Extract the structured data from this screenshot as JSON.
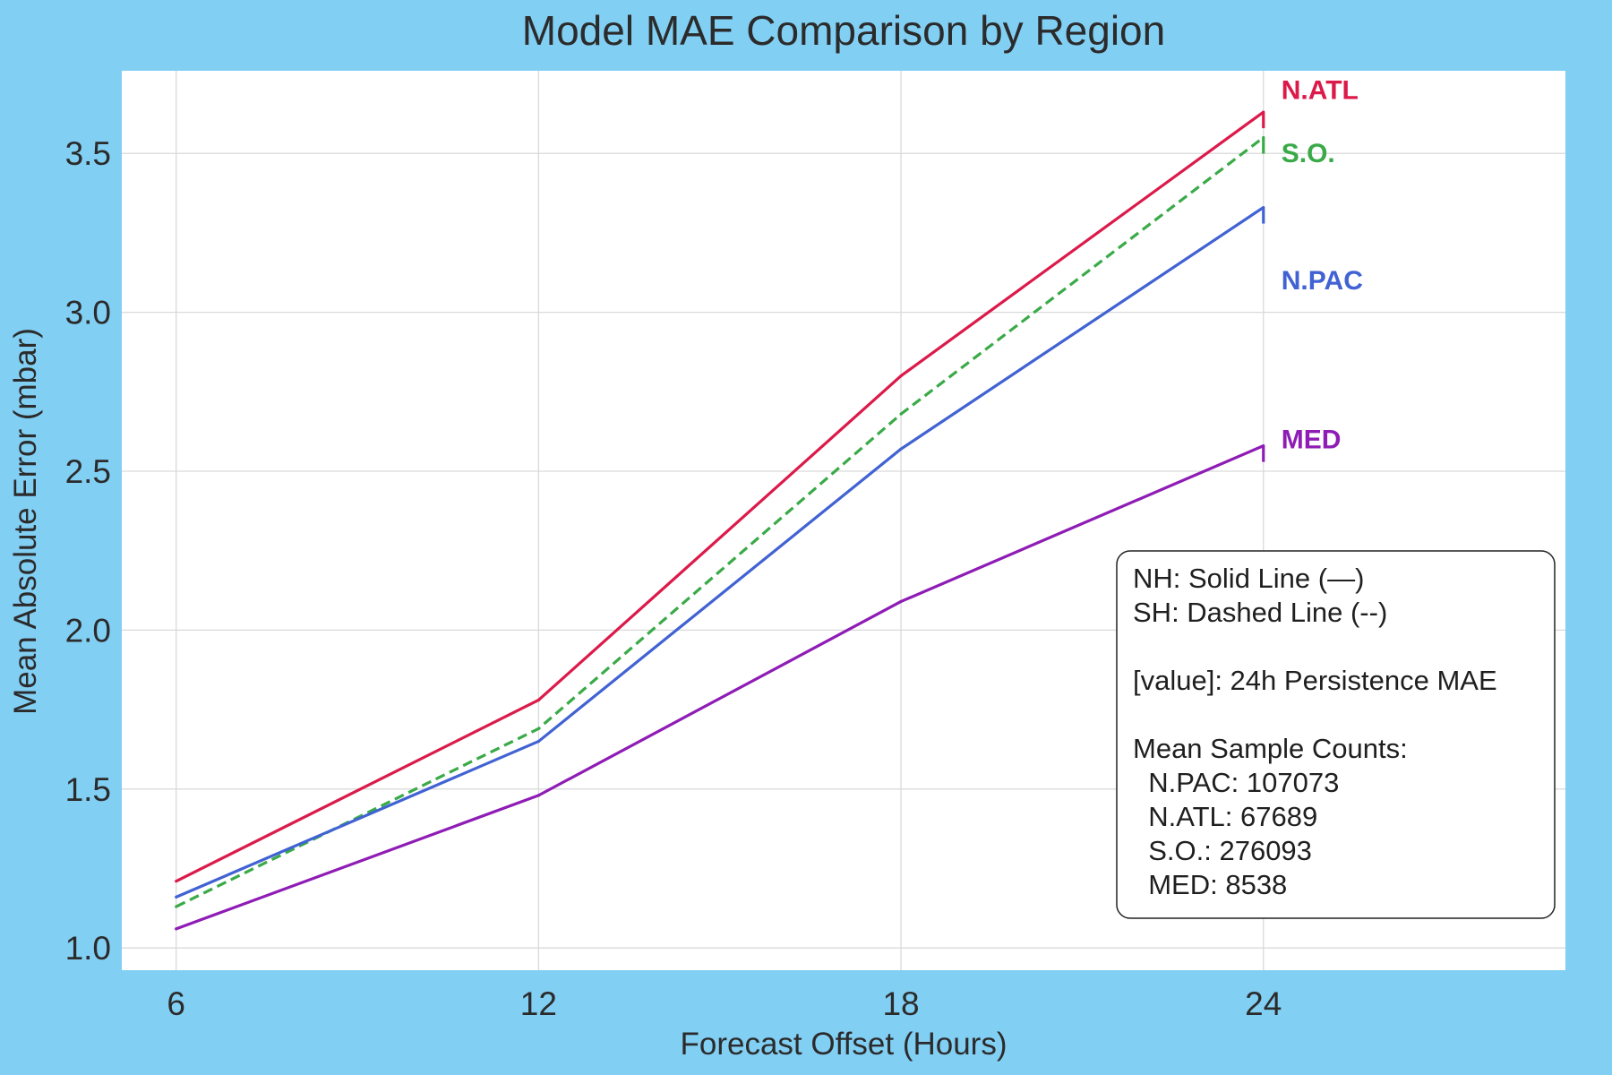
{
  "chart_data": {
    "type": "line",
    "title": "Model MAE Comparison by Region",
    "xlabel": "Forecast Offset (Hours)",
    "ylabel": "Mean Absolute Error (mbar)",
    "x": [
      6,
      12,
      18,
      24
    ],
    "x_ticks": [
      "6",
      "12",
      "18",
      "24"
    ],
    "y_ticks": [
      "1.0",
      "1.5",
      "2.0",
      "2.5",
      "3.0",
      "3.5"
    ],
    "xlim": [
      5.1,
      29
    ],
    "ylim": [
      0.93,
      3.76
    ],
    "grid": true,
    "series": [
      {
        "name": "N.ATL",
        "values": [
          1.21,
          1.78,
          2.8,
          3.63
        ],
        "color": "#dc1a4a",
        "dash": "solid"
      },
      {
        "name": "S.O.",
        "values": [
          1.13,
          1.69,
          2.68,
          3.55
        ],
        "color": "#3aaa48",
        "dash": "dashed"
      },
      {
        "name": "N.PAC",
        "values": [
          1.16,
          1.65,
          2.57,
          3.33
        ],
        "color": "#4162d3",
        "dash": "solid"
      },
      {
        "name": "MED",
        "values": [
          1.06,
          1.48,
          2.09,
          2.58
        ],
        "color": "#8e1cb5",
        "dash": "solid"
      }
    ],
    "end_labels": [
      {
        "series": "N.ATL",
        "text": "N.ATL",
        "y": 3.7
      },
      {
        "series": "S.O.",
        "text": "S.O.",
        "y": 3.5
      },
      {
        "series": "N.PAC",
        "text": "N.PAC",
        "y": 3.1
      },
      {
        "series": "MED",
        "text": "MED",
        "y": 2.6
      }
    ],
    "annotation": {
      "placement": "bottom-right",
      "lines": [
        "NH: Solid Line (—)",
        "SH: Dashed Line (--)",
        "",
        "[value]: 24h Persistence MAE",
        "",
        "Mean Sample Counts:",
        "  N.PAC: 107073",
        "  N.ATL: 67689",
        "  S.O.: 276093",
        "  MED: 8538"
      ]
    }
  }
}
